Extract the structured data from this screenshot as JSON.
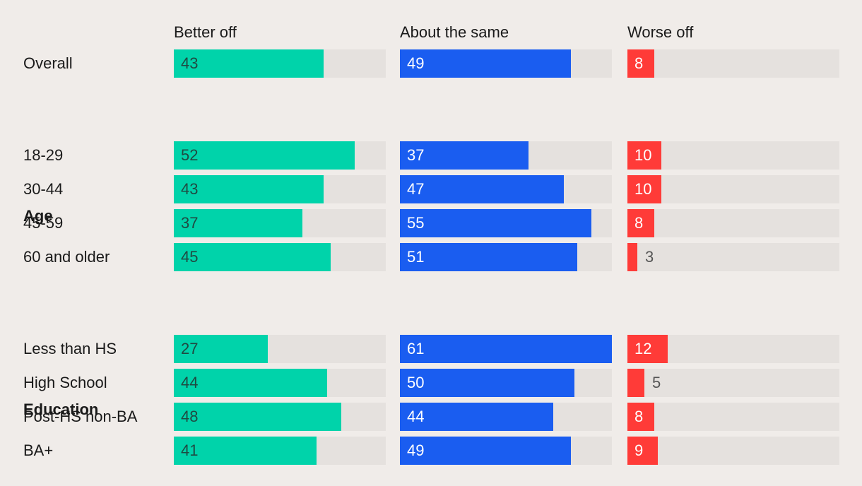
{
  "colors": {
    "background": "#f0ece9",
    "track": "#e5e1de",
    "better_off": "#00d3aa",
    "about_the_same": "#1a5df0",
    "worse_off": "#ff3b38"
  },
  "chart_data": {
    "type": "bar",
    "orientation": "horizontal",
    "layout": "small-multiples",
    "xlim": [
      0,
      100
    ],
    "grid": false,
    "series": [
      {
        "name": "Better off",
        "color": "#00d3aa"
      },
      {
        "name": "About the same",
        "color": "#1a5df0"
      },
      {
        "name": "Worse off",
        "color": "#ff3b38"
      }
    ],
    "groups": [
      {
        "title": "",
        "rows": [
          {
            "label": "Overall",
            "values": [
              43,
              49,
              8
            ]
          }
        ]
      },
      {
        "title": "Age",
        "rows": [
          {
            "label": "18-29",
            "values": [
              52,
              37,
              10
            ]
          },
          {
            "label": "30-44",
            "values": [
              43,
              47,
              10
            ]
          },
          {
            "label": "45-59",
            "values": [
              37,
              55,
              8
            ]
          },
          {
            "label": "60 and older",
            "values": [
              45,
              51,
              3
            ]
          }
        ]
      },
      {
        "title": "Education",
        "rows": [
          {
            "label": "Less than HS",
            "values": [
              27,
              61,
              12
            ]
          },
          {
            "label": "High School",
            "values": [
              44,
              50,
              5
            ]
          },
          {
            "label": "Post-HS non-BA",
            "values": [
              48,
              44,
              8
            ]
          },
          {
            "label": "BA+",
            "values": [
              41,
              49,
              9
            ]
          }
        ]
      }
    ]
  }
}
